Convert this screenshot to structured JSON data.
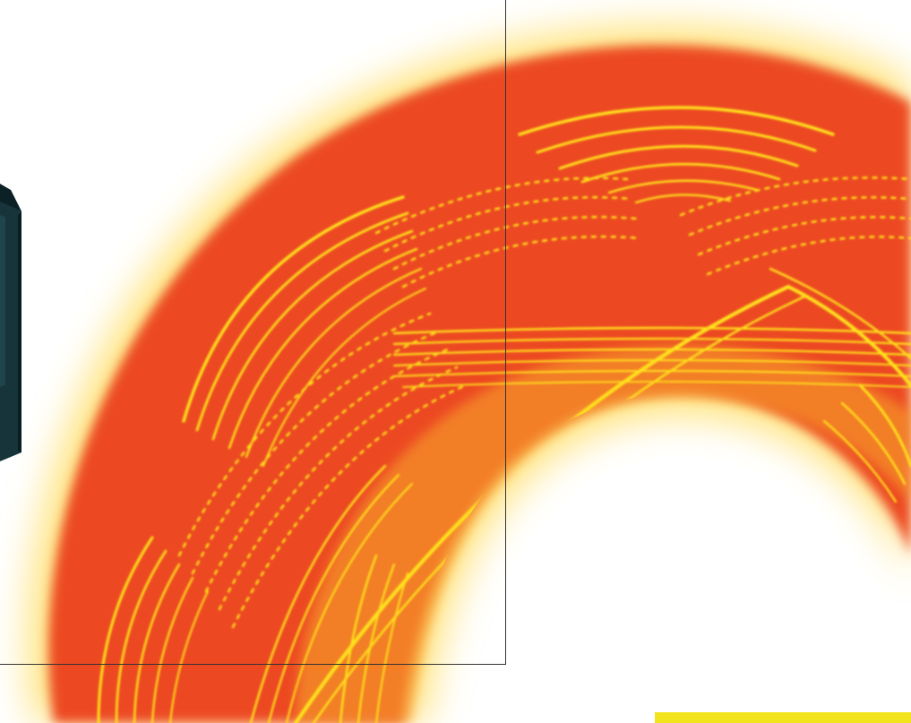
{
  "scene": {
    "description_visible_text": "",
    "colors": {
      "background": "#ffffff",
      "band_red": "#ec4a24",
      "band_orange": "#f47a22",
      "fringe_yellow": "#ffe21a",
      "frame_line": "#333333",
      "device_body": "#17343a",
      "device_edge": "#0c2126",
      "bar_yellow": "#f2e41c"
    },
    "elements": {
      "pattern": "interference-ring",
      "frame": "rectangle-frame",
      "device": "dark-device",
      "bar": "yellow-bar"
    }
  }
}
